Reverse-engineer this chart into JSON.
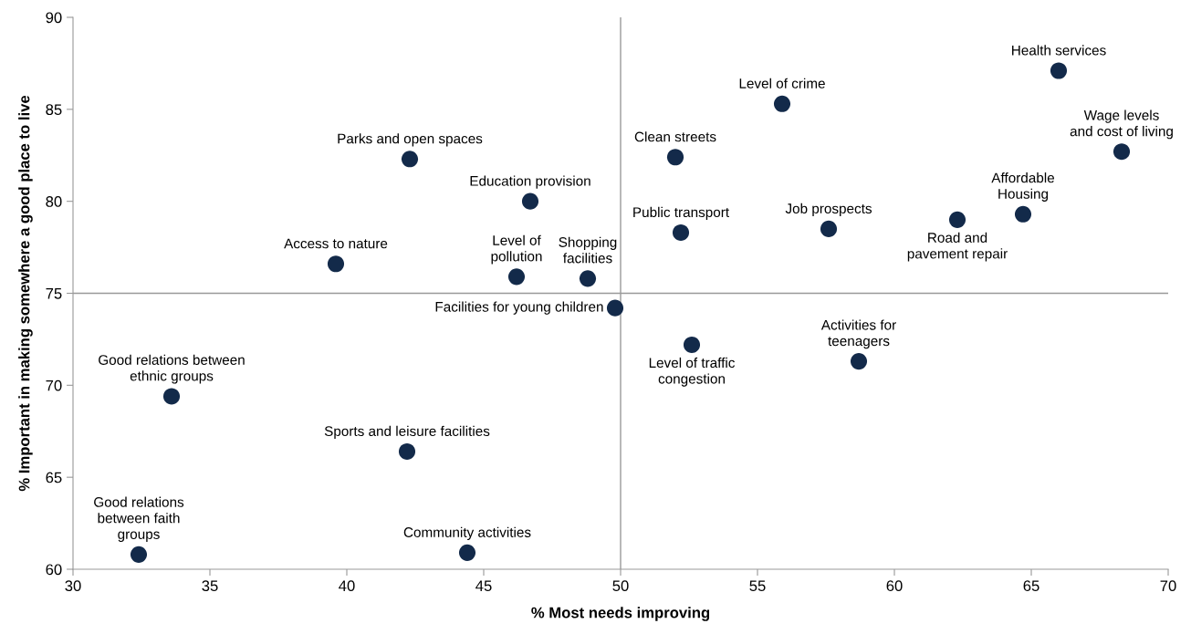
{
  "chart_data": {
    "type": "scatter",
    "xlabel": "% Most needs improving",
    "ylabel": "% Important in making somewhere a good place to live",
    "x": [
      66.0,
      68.3,
      55.9,
      52.0,
      42.3,
      46.7,
      64.7,
      62.3,
      57.6,
      52.2,
      39.6,
      46.2,
      48.8,
      49.8,
      52.6,
      58.7,
      33.6,
      42.2,
      32.4,
      44.4
    ],
    "series": [
      {
        "color": "#132a4a",
        "values": [
          87.1,
          82.7,
          85.3,
          82.4,
          82.3,
          80.0,
          79.3,
          79.0,
          78.5,
          78.3,
          76.6,
          75.9,
          75.8,
          74.2,
          72.2,
          71.3,
          69.4,
          66.4,
          60.8,
          60.9
        ]
      }
    ],
    "annotations": [
      {
        "text": "Health services",
        "x": 66.0,
        "y": 87.1
      },
      {
        "text": "Wage levels\nand cost of living",
        "x": 68.3,
        "y": 82.7
      },
      {
        "text": "Level of crime",
        "x": 55.9,
        "y": 85.3
      },
      {
        "text": "Clean streets",
        "x": 52.0,
        "y": 82.4
      },
      {
        "text": "Parks and open spaces",
        "x": 42.3,
        "y": 82.3
      },
      {
        "text": "Education provision",
        "x": 46.7,
        "y": 80.0
      },
      {
        "text": "Affordable\nHousing",
        "x": 64.7,
        "y": 79.3
      },
      {
        "text": "Road and\npavement repair",
        "x": 62.3,
        "y": 79.0
      },
      {
        "text": "Job prospects",
        "x": 57.6,
        "y": 78.5
      },
      {
        "text": "Public transport",
        "x": 52.2,
        "y": 78.3
      },
      {
        "text": "Access to nature",
        "x": 39.6,
        "y": 76.6
      },
      {
        "text": "Level of\npollution",
        "x": 46.2,
        "y": 75.9
      },
      {
        "text": "Shopping\nfacilities",
        "x": 48.8,
        "y": 75.8
      },
      {
        "text": "Facilities for young children",
        "x": 49.8,
        "y": 74.2
      },
      {
        "text": "Level of traffic\ncongestion",
        "x": 52.6,
        "y": 72.2
      },
      {
        "text": "Activities for\nteenagers",
        "x": 58.7,
        "y": 71.3
      },
      {
        "text": "Good relations between\nethnic groups",
        "x": 33.6,
        "y": 69.4
      },
      {
        "text": "Sports and leisure facilities",
        "x": 42.2,
        "y": 66.4
      },
      {
        "text": "Good relations\nbetween faith\ngroups",
        "x": 32.4,
        "y": 60.8
      },
      {
        "text": "Community activities",
        "x": 44.4,
        "y": 60.9
      }
    ],
    "ref_lines": [
      {
        "axis": "x",
        "value": 50,
        "color": "#999999"
      },
      {
        "axis": "y",
        "value": 75,
        "color": "#999999"
      }
    ],
    "xlim": [
      30,
      70
    ],
    "xticks": [
      30,
      35,
      40,
      45,
      50,
      55,
      60,
      65,
      70
    ],
    "ylim": [
      60,
      90
    ],
    "yticks": [
      60,
      65,
      70,
      75,
      80,
      85,
      90
    ],
    "grid": false,
    "legend": false,
    "marker": "circle"
  }
}
